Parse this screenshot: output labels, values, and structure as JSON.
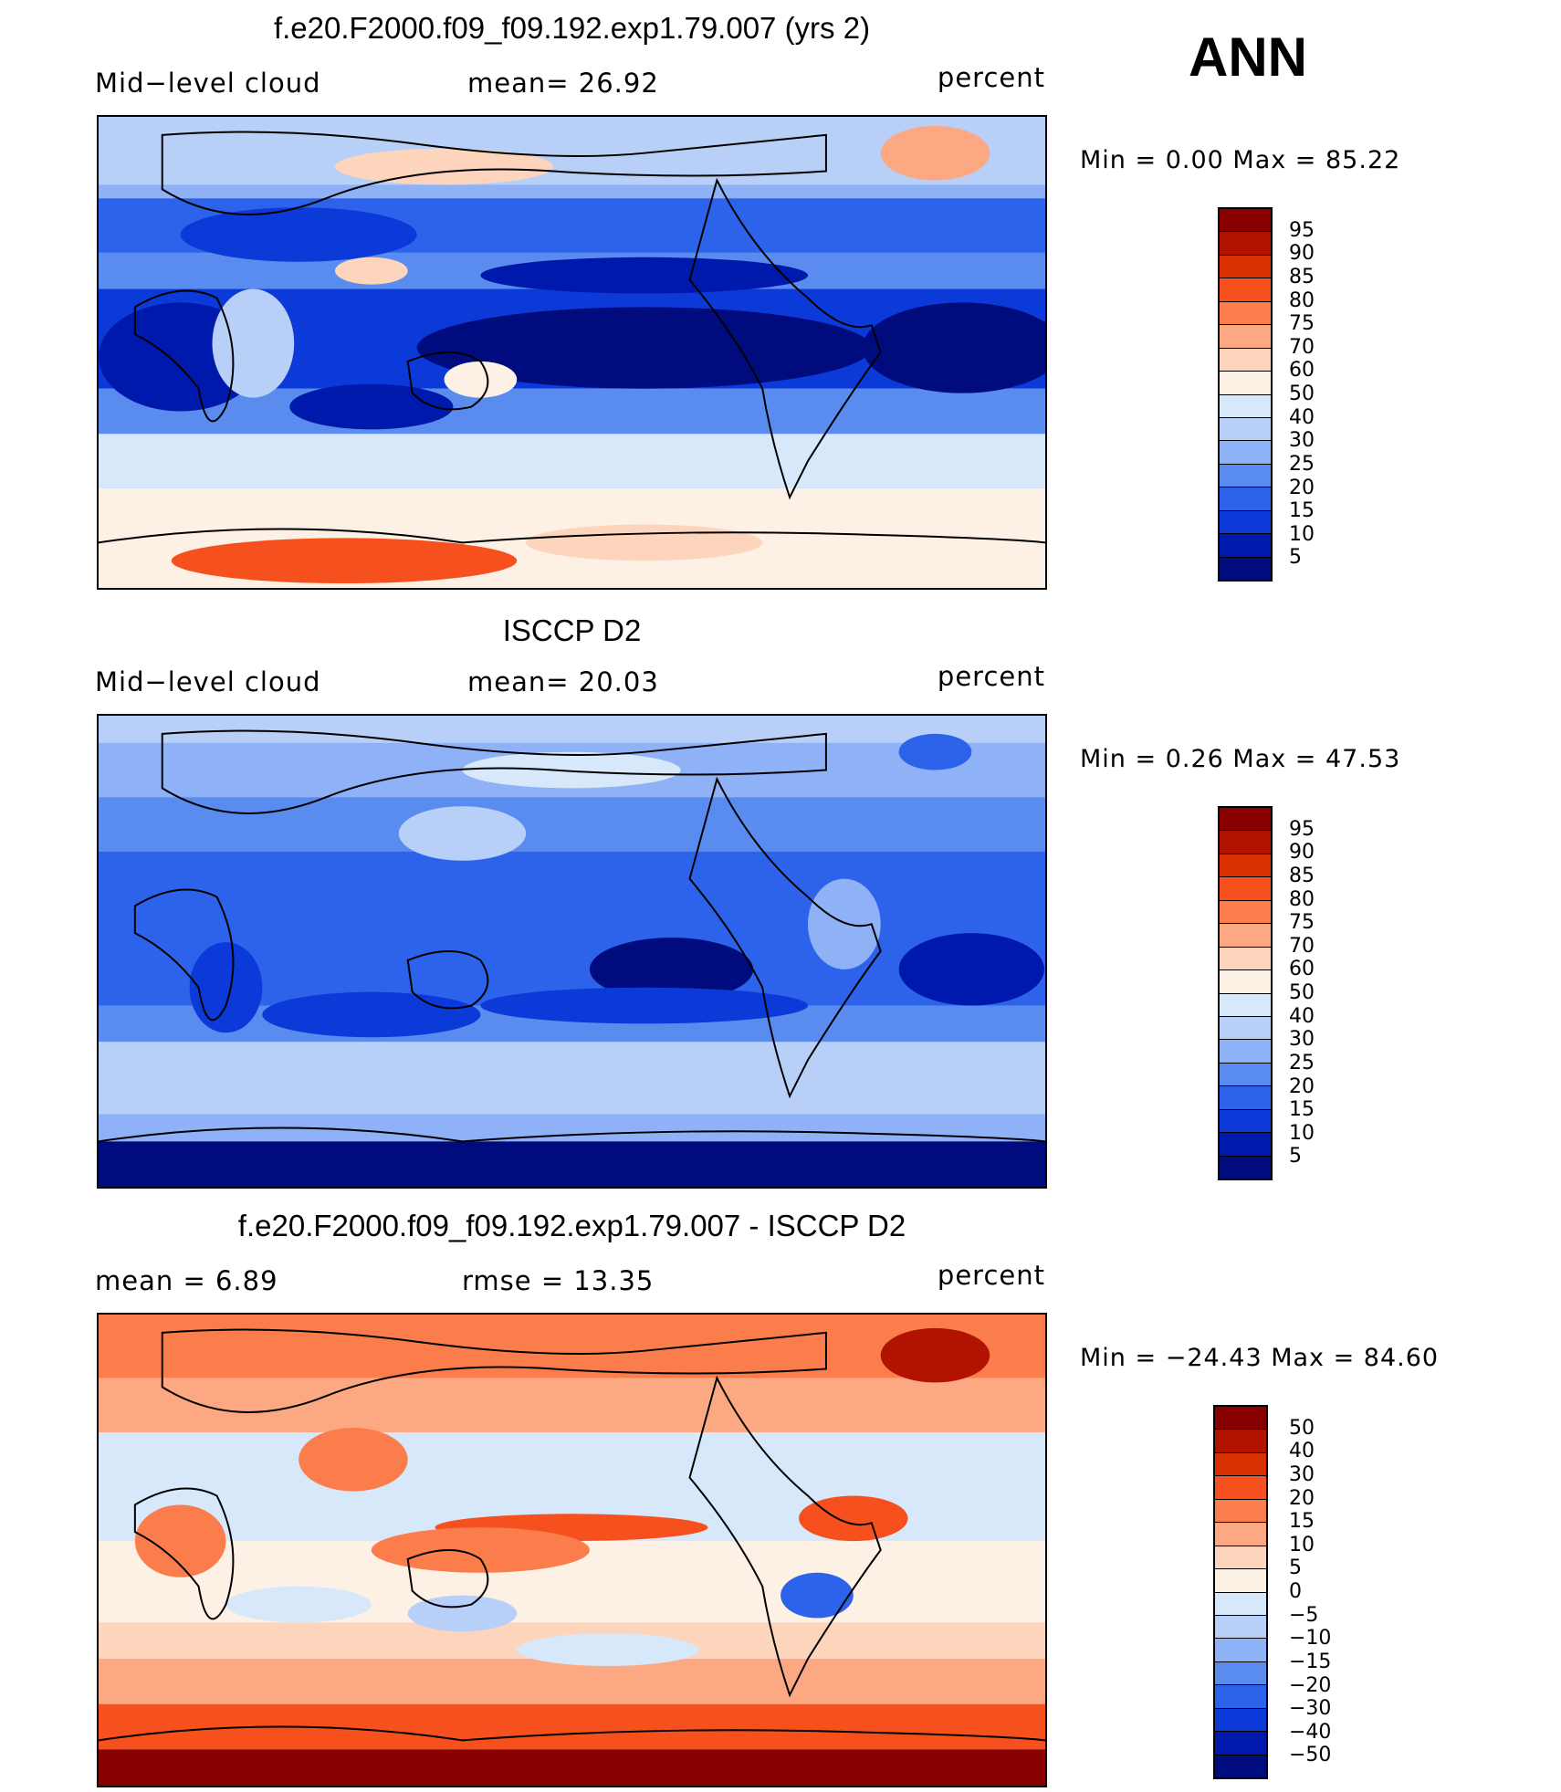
{
  "season": "ANN",
  "panels": [
    {
      "title": "f.e20.F2000.f09_f09.192.exp1.79.007 (yrs 2)",
      "left_label": "Mid−level cloud",
      "center_label": "mean=   26.92",
      "right_label": "percent",
      "minmax": "Min  =     0.00  Max  =    85.22",
      "colorbar": {
        "colors": [
          "#880000",
          "#b11300",
          "#d83000",
          "#f5501e",
          "#fc7d4c",
          "#fca882",
          "#fdd5bd",
          "#fdf0e4",
          "#d8e8fb",
          "#b8d0f8",
          "#8fb1f5",
          "#5a8cf0",
          "#2d63ea",
          "#0c3ad8",
          "#0019ad",
          "#000b7e"
        ],
        "labels": [
          "95",
          "90",
          "85",
          "80",
          "75",
          "70",
          "60",
          "50",
          "40",
          "30",
          "25",
          "20",
          "15",
          "10",
          "5"
        ]
      }
    },
    {
      "title": "ISCCP D2",
      "left_label": "Mid−level cloud",
      "center_label": "mean=   20.03",
      "right_label": "percent",
      "minmax": "Min  =     0.26  Max  =    47.53",
      "colorbar": {
        "colors": [
          "#880000",
          "#b11300",
          "#d83000",
          "#f5501e",
          "#fc7d4c",
          "#fca882",
          "#fdd5bd",
          "#fdf0e4",
          "#d8e8fb",
          "#b8d0f8",
          "#8fb1f5",
          "#5a8cf0",
          "#2d63ea",
          "#0c3ad8",
          "#0019ad",
          "#000b7e"
        ],
        "labels": [
          "95",
          "90",
          "85",
          "80",
          "75",
          "70",
          "60",
          "50",
          "40",
          "30",
          "25",
          "20",
          "15",
          "10",
          "5"
        ]
      }
    },
    {
      "title": "f.e20.F2000.f09_f09.192.exp1.79.007 - ISCCP D2",
      "left_label": "mean  =     6.89",
      "center_label": "rmse  =    13.35",
      "right_label": "percent",
      "minmax": "Min  = −24.43  Max  =    84.60",
      "colorbar": {
        "colors": [
          "#880000",
          "#b11300",
          "#d83000",
          "#f5501e",
          "#fc7d4c",
          "#fca882",
          "#fdd5bd",
          "#fdf0e4",
          "#d8e8fb",
          "#b8d0f8",
          "#8fb1f5",
          "#5a8cf0",
          "#2d63ea",
          "#0c3ad8",
          "#0019ad",
          "#000b7e"
        ],
        "labels": [
          "50",
          "40",
          "30",
          "20",
          "15",
          "10",
          "5",
          "0",
          "−5",
          "−10",
          "−15",
          "−20",
          "−30",
          "−40",
          "−50"
        ]
      }
    }
  ]
}
